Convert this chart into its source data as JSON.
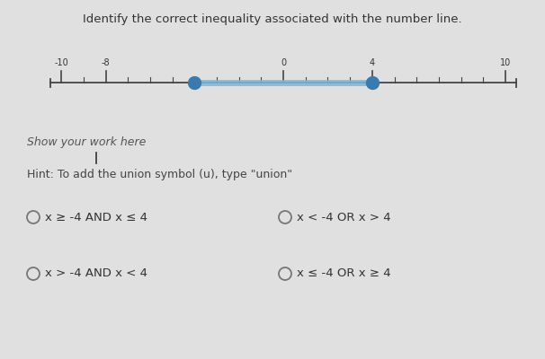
{
  "title": "Identify the correct inequality associated with the number line.",
  "title_fontsize": 9.5,
  "bg_color": "#e0e0e0",
  "number_line": {
    "xmin": -10,
    "xmax": 10,
    "filled_dots": [
      -4,
      4
    ],
    "segment_color": "#7ab8d9",
    "dot_color": "#3a7ab0",
    "line_color": "#444444",
    "label_ticks": [
      -10,
      -8,
      0,
      4,
      10
    ],
    "tick_labels": {
      "-10": "-10",
      "-8": "-8",
      "0": "0",
      "4": "4",
      "10": "10"
    }
  },
  "show_work_text": "Show your work here",
  "hint_text": "Hint: To add the union symbol (u), type \"union\"",
  "options": [
    {
      "label": "x ≥ -4 AND x ≤ 4",
      "col": 0,
      "row": 0
    },
    {
      "label": "x < -4 OR x > 4",
      "col": 1,
      "row": 0
    },
    {
      "label": "x > -4 AND x < 4",
      "col": 0,
      "row": 1
    },
    {
      "label": "x ≤ -4 OR x ≥ 4",
      "col": 1,
      "row": 1
    }
  ],
  "option_fontsize": 9.5,
  "text_color": "#333333",
  "radio_color": "#777777",
  "work_text_color": "#555555",
  "hint_text_color": "#444444"
}
